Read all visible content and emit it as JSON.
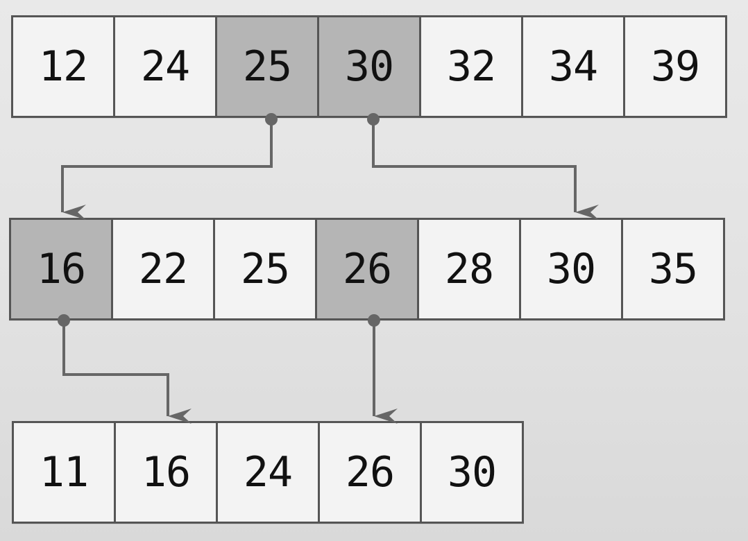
{
  "rows": [
    {
      "cells": [
        {
          "value": "12",
          "highlighted": false
        },
        {
          "value": "24",
          "highlighted": false
        },
        {
          "value": "25",
          "highlighted": true
        },
        {
          "value": "30",
          "highlighted": true
        },
        {
          "value": "32",
          "highlighted": false
        },
        {
          "value": "34",
          "highlighted": false
        },
        {
          "value": "39",
          "highlighted": false
        }
      ]
    },
    {
      "cells": [
        {
          "value": "16",
          "highlighted": true
        },
        {
          "value": "22",
          "highlighted": false
        },
        {
          "value": "25",
          "highlighted": false
        },
        {
          "value": "26",
          "highlighted": true
        },
        {
          "value": "28",
          "highlighted": false
        },
        {
          "value": "30",
          "highlighted": false
        },
        {
          "value": "35",
          "highlighted": false
        }
      ]
    },
    {
      "cells": [
        {
          "value": "11",
          "highlighted": false
        },
        {
          "value": "16",
          "highlighted": false
        },
        {
          "value": "24",
          "highlighted": false
        },
        {
          "value": "26",
          "highlighted": false
        },
        {
          "value": "30",
          "highlighted": false
        }
      ]
    }
  ],
  "links": [
    {
      "from_row": 1,
      "from_cell": 3,
      "to_row": 2,
      "to_cell": 1
    },
    {
      "from_row": 1,
      "from_cell": 4,
      "to_row": 2,
      "to_cell": 6
    },
    {
      "from_row": 2,
      "from_cell": 1,
      "to_row": 3,
      "to_cell": 2
    },
    {
      "from_row": 2,
      "from_cell": 4,
      "to_row": 3,
      "to_cell": 4
    }
  ],
  "colors": {
    "border": "#555555",
    "cell_fill": "#f3f3f3",
    "highlight_fill": "#b5b5b5",
    "connector": "#666666"
  }
}
